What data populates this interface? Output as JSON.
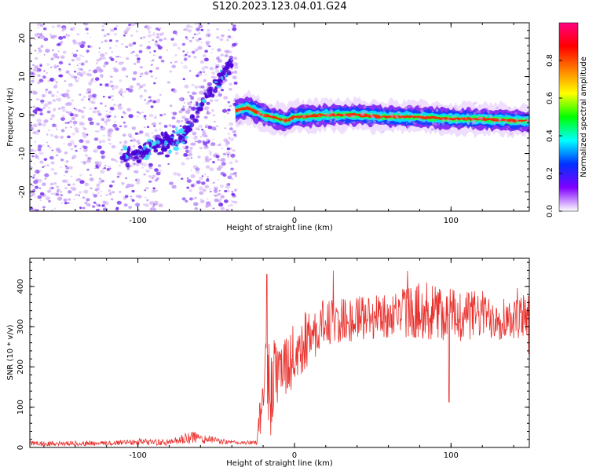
{
  "title": "S120.2023.123.04.01.G24",
  "colors": {
    "snr_line": "#e8302c",
    "scatter_low": "#c9a2f5",
    "scatter_mid": "#6a1cf0",
    "scatter_hot": "#2fe0ff",
    "band_core": "#ff2200",
    "band_edge": "#00e5ff"
  },
  "colorbar": {
    "label": "Normalized spectral amplitude",
    "ticks": [
      "0.0",
      "0.2",
      "0.4",
      "0.6",
      "0.8"
    ],
    "stops": [
      "#ffffff",
      "#8000ff",
      "#0030ff",
      "#00ffff",
      "#00ff00",
      "#ffff00",
      "#ff8000",
      "#ff0000",
      "#ff0080"
    ]
  },
  "chart_data": [
    {
      "type": "heatmap",
      "title": "S120.2023.123.04.01.G24",
      "xlabel": "Height of straight line (km)",
      "ylabel": "Frequency (Hz)",
      "xlim": [
        -169,
        150
      ],
      "ylim": [
        -25,
        24
      ],
      "xticks": [
        "-100",
        "0",
        "100"
      ],
      "yticks": [
        "-20",
        "-10",
        "0",
        "10",
        "20"
      ],
      "colorbar_range": [
        0,
        1
      ],
      "description_series": {
        "band_center_x": [
          -38,
          -30,
          -25,
          -20,
          -15,
          -10,
          -5,
          0,
          20,
          40,
          60,
          80,
          100,
          120,
          140,
          150
        ],
        "band_center_freq": [
          1,
          2,
          1,
          0,
          -0.5,
          -1,
          -1.5,
          -0.5,
          0,
          0,
          -0.5,
          -0.5,
          -1,
          -1,
          -1.5,
          -1.5
        ],
        "diagonal_feature_x": [
          -110,
          -100,
          -90,
          -80,
          -70,
          -60,
          -50,
          -40
        ],
        "diagonal_feature_freq": [
          -11,
          -10,
          -8,
          -7,
          -5,
          3,
          8,
          14
        ]
      }
    },
    {
      "type": "line",
      "xlabel": "Height of straight line (km)",
      "ylabel": "SNR (10 * v/v)",
      "xlim": [
        -169,
        150
      ],
      "ylim": [
        0,
        470
      ],
      "xticks": [
        "-100",
        "0",
        "100"
      ],
      "yticks": [
        "0",
        "100",
        "200",
        "300",
        "400"
      ],
      "x_envelope": [
        -169,
        -120,
        -100,
        -80,
        -65,
        -55,
        -40,
        -24,
        -21,
        -18,
        -15,
        -12,
        -10,
        0,
        10,
        20,
        40,
        60,
        80,
        100,
        120,
        140,
        150
      ],
      "y_baseline": [
        10,
        10,
        15,
        12,
        25,
        20,
        12,
        12,
        100,
        200,
        140,
        200,
        170,
        230,
        280,
        310,
        320,
        330,
        340,
        330,
        330,
        320,
        330
      ],
      "y_amplitude": [
        6,
        6,
        8,
        8,
        16,
        10,
        5,
        5,
        80,
        100,
        120,
        120,
        80,
        80,
        70,
        60,
        55,
        60,
        70,
        70,
        60,
        55,
        55
      ]
    }
  ]
}
